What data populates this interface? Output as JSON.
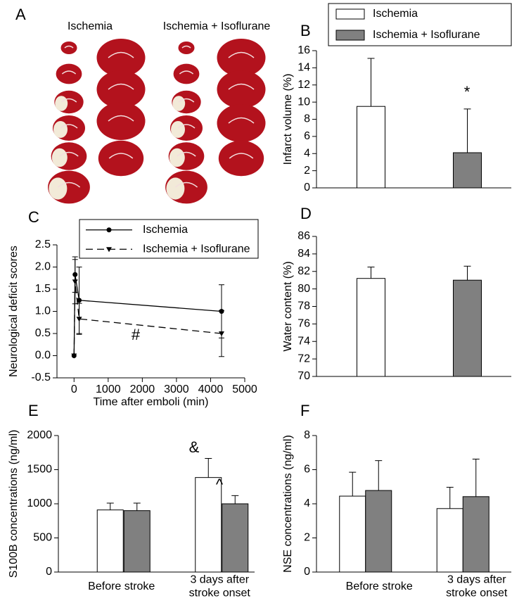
{
  "image_panel": {
    "label": "A",
    "captions": [
      "Ischemia",
      "Ischemia + Isoflurane"
    ]
  },
  "chart_data": [
    {
      "panel": "B",
      "type": "bar",
      "ylabel": "Infarct volume (%)",
      "categories": [
        null
      ],
      "series": [
        {
          "name": "Ischemia",
          "color": "#ffffff",
          "values": [
            9.5
          ],
          "errors": [
            5.6
          ]
        },
        {
          "name": "Ischemia + Isoflurane",
          "color": "#808080",
          "values": [
            4.1
          ],
          "errors": [
            5.1
          ]
        }
      ],
      "ylim": [
        0,
        16
      ],
      "yticks": [
        0,
        2,
        4,
        6,
        8,
        10,
        12,
        14,
        16
      ],
      "annotations": [
        "*"
      ],
      "legend": "top"
    },
    {
      "panel": "C",
      "type": "line",
      "ylabel": "Neurological deficit scores",
      "xlabel": "Time after emboli (min)",
      "x": [
        0,
        30,
        150,
        4320
      ],
      "series": [
        {
          "name": "Ischemia",
          "color": "#000000",
          "marker": "circle",
          "linestyle": "solid",
          "values": [
            0,
            1.83,
            1.25,
            1.0
          ],
          "errors": [
            0,
            0.4,
            0.75,
            0.6
          ]
        },
        {
          "name": "Ischemia + Isoflurane",
          "color": "#000000",
          "marker": "triangle-down",
          "linestyle": "dashed",
          "values": [
            0,
            1.67,
            0.83,
            0.5
          ],
          "errors": [
            0,
            0.5,
            0.35,
            0.52
          ]
        }
      ],
      "xlim": [
        -500,
        5000
      ],
      "xticks": [
        0,
        1000,
        2000,
        3000,
        4000,
        5000
      ],
      "ylim": [
        -0.5,
        2.5
      ],
      "yticks": [
        -0.5,
        {
          "value": 0,
          "label": "0.0"
        },
        0.5,
        {
          "value": 1,
          "label": "1.0"
        },
        1.5,
        {
          "value": 2,
          "label": "2.0"
        },
        2.5
      ],
      "annotations": [
        "#"
      ],
      "legend": "top"
    },
    {
      "panel": "D",
      "type": "bar",
      "ylabel": "Water content (%)",
      "categories": [
        null
      ],
      "series": [
        {
          "color": "#ffffff",
          "values": [
            81.2
          ],
          "errors": [
            1.3
          ]
        },
        {
          "color": "#808080",
          "values": [
            81.0
          ],
          "errors": [
            1.6
          ]
        }
      ],
      "ylim": [
        70,
        86
      ],
      "yticks": [
        70,
        72,
        74,
        76,
        78,
        80,
        82,
        84,
        86
      ]
    },
    {
      "panel": "E",
      "type": "bar",
      "ylabel": "S100B concentrations (ng/ml)",
      "categories": [
        "Before stroke",
        "3 days after\nstroke onset"
      ],
      "series": [
        {
          "color": "#ffffff",
          "values": [
            910,
            1385
          ],
          "errors": [
            100,
            280
          ]
        },
        {
          "color": "#808080",
          "values": [
            900,
            1000
          ],
          "errors": [
            110,
            120
          ]
        }
      ],
      "ylim": [
        0,
        2000
      ],
      "yticks": [
        0,
        500,
        1000,
        1500,
        2000
      ],
      "annotations": [
        "&",
        "^"
      ]
    },
    {
      "panel": "F",
      "type": "bar",
      "ylabel": "NSE concentrations (ng/ml)",
      "categories": [
        "Before stroke",
        "3 days after\nstroke onset"
      ],
      "series": [
        {
          "color": "#ffffff",
          "values": [
            4.45,
            3.72
          ],
          "errors": [
            1.4,
            1.25
          ]
        },
        {
          "color": "#808080",
          "values": [
            4.78,
            4.42
          ],
          "errors": [
            1.75,
            2.2
          ]
        }
      ],
      "ylim": [
        0,
        8
      ],
      "yticks": [
        0,
        2,
        4,
        6,
        8
      ]
    }
  ]
}
